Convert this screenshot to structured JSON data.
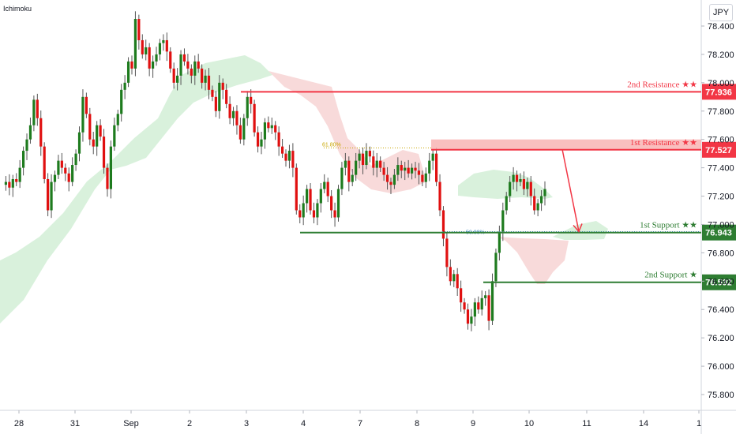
{
  "indicator": "Ichimoku",
  "currency_button": "JPY",
  "colors": {
    "bull": "#26a69a",
    "bull_body": "#1e7b1e",
    "bear": "#e01010",
    "resistance": "#f23645",
    "support": "#2e7d32",
    "kumo_bull": "#d5efd8",
    "kumo_bear": "#f7d6d6",
    "fib": "#c8a600"
  },
  "chart_data": {
    "type": "candlestick",
    "x_tick_labels": [
      "28",
      "31",
      "Sep",
      "2",
      "3",
      "4",
      "7",
      "8",
      "9",
      "10",
      "11",
      "14",
      "1"
    ],
    "y_tick_labels": [
      "78.400",
      "78.200",
      "78.000",
      "77.800",
      "77.600",
      "77.400",
      "77.200",
      "77.000",
      "76.800",
      "76.600",
      "76.400",
      "76.200",
      "76.000",
      "75.800"
    ],
    "ylim": [
      75.7,
      78.5
    ],
    "levels": [
      {
        "name": "2nd Resistance",
        "stars": "★★",
        "value": "77.936",
        "kind": "resistance"
      },
      {
        "name": "1st Resistance",
        "stars": "★★",
        "value": "77.527",
        "kind": "resistance"
      },
      {
        "name": "1st Support",
        "stars": "★★",
        "value": "76.943",
        "kind": "support"
      },
      {
        "name": "2nd Support",
        "stars": "★",
        "value": "76.592",
        "kind": "support"
      }
    ],
    "fib_labels": [
      "61.80%",
      "50.00%"
    ],
    "projection_arrow": {
      "from": 77.53,
      "to": 76.95
    }
  }
}
